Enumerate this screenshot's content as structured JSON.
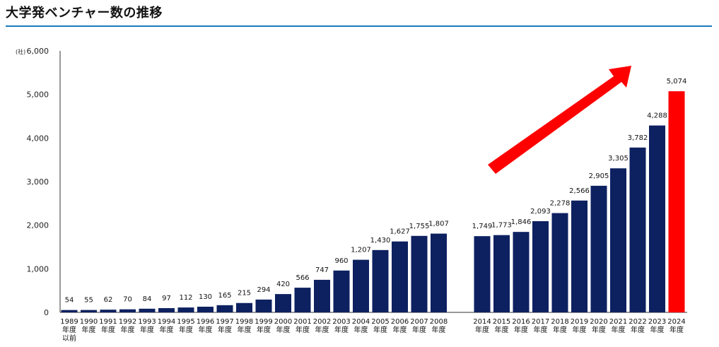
{
  "page": {
    "title": "大学発ベンチャー数の推移"
  },
  "chart_data": {
    "type": "bar",
    "unit_label": "(社)",
    "ylim": [
      0,
      6000
    ],
    "yticks": [
      "0",
      "1,000",
      "2,000",
      "3,000",
      "4,000",
      "5,000",
      "6,000"
    ],
    "ytick_values": [
      0,
      1000,
      2000,
      3000,
      4000,
      5000,
      6000
    ],
    "categories": [
      [
        "1989",
        "年度",
        "以前"
      ],
      [
        "1990",
        "年度"
      ],
      [
        "1991",
        "年度"
      ],
      [
        "1992",
        "年度"
      ],
      [
        "1993",
        "年度"
      ],
      [
        "1994",
        "年度"
      ],
      [
        "1995",
        "年度"
      ],
      [
        "1996",
        "年度"
      ],
      [
        "1997",
        "年度"
      ],
      [
        "1998",
        "年度"
      ],
      [
        "1999",
        "年度"
      ],
      [
        "2000",
        "年度"
      ],
      [
        "2001",
        "年度"
      ],
      [
        "2002",
        "年度"
      ],
      [
        "2003",
        "年度"
      ],
      [
        "2004",
        "年度"
      ],
      [
        "2005",
        "年度"
      ],
      [
        "2006",
        "年度"
      ],
      [
        "2007",
        "年度"
      ],
      [
        "2008",
        "年度"
      ],
      [
        "2014",
        "年度"
      ],
      [
        "2015",
        "年度"
      ],
      [
        "2016",
        "年度"
      ],
      [
        "2017",
        "年度"
      ],
      [
        "2018",
        "年度"
      ],
      [
        "2019",
        "年度"
      ],
      [
        "2020",
        "年度"
      ],
      [
        "2021",
        "年度"
      ],
      [
        "2022",
        "年度"
      ],
      [
        "2023",
        "年度"
      ],
      [
        "2024",
        "年度"
      ]
    ],
    "values": [
      54,
      55,
      62,
      70,
      84,
      97,
      112,
      130,
      165,
      215,
      294,
      420,
      566,
      747,
      960,
      1207,
      1430,
      1627,
      1755,
      1807,
      1749,
      1773,
      1846,
      2093,
      2278,
      2566,
      2905,
      3305,
      3782,
      4288,
      5074
    ],
    "value_labels": [
      "54",
      "55",
      "62",
      "70",
      "84",
      "97",
      "112",
      "130",
      "165",
      "215",
      "294",
      "420",
      "566",
      "747",
      "960",
      "1,207",
      "1,430",
      "1,627",
      "1,755",
      "1,807",
      "1,749",
      "1,773",
      "1,846",
      "2,093",
      "2,278",
      "2,566",
      "2,905",
      "3,305",
      "3,782",
      "4,288",
      "5,074"
    ],
    "highlight_index": 30,
    "gap_after_index": 19,
    "colors": {
      "bar": "#0d2160",
      "highlight": "#ff0000",
      "arrow": "#ff0000",
      "title_rule": "#1a7bbf"
    },
    "annotation": "red upward trend arrow"
  }
}
